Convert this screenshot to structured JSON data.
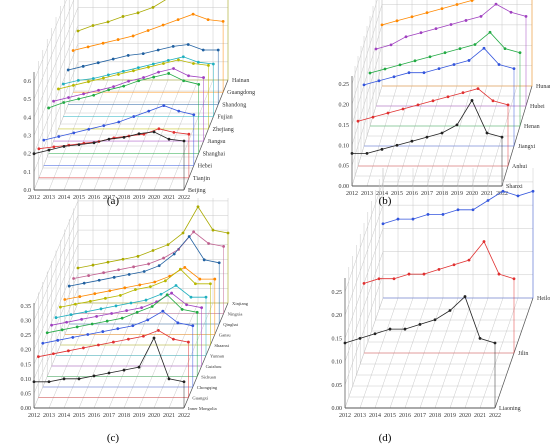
{
  "chart_data": [
    {
      "type": "line",
      "panel_label": "(a)",
      "x": [
        2012,
        2013,
        2014,
        2015,
        2016,
        2017,
        2018,
        2019,
        2020,
        2021,
        2022
      ],
      "z_ticks": [
        "0.0",
        "0.1",
        "0.2",
        "0.3",
        "0.4",
        "0.5",
        "0.6"
      ],
      "zlim": [
        0,
        0.65
      ],
      "series": [
        {
          "name": "Beijing",
          "color": "#222222",
          "values": [
            0.2,
            0.22,
            0.24,
            0.25,
            0.26,
            0.28,
            0.29,
            0.31,
            0.32,
            0.28,
            0.27
          ]
        },
        {
          "name": "Tianjin",
          "color": "#e03030",
          "values": [
            0.16,
            0.17,
            0.18,
            0.19,
            0.2,
            0.22,
            0.23,
            0.24,
            0.27,
            0.25,
            0.24
          ]
        },
        {
          "name": "Hebei",
          "color": "#3355dd",
          "values": [
            0.14,
            0.16,
            0.18,
            0.2,
            0.22,
            0.24,
            0.27,
            0.3,
            0.33,
            0.3,
            0.28
          ]
        },
        {
          "name": "Shanghai",
          "color": "#22aa44",
          "values": [
            0.25,
            0.28,
            0.3,
            0.32,
            0.35,
            0.37,
            0.4,
            0.42,
            0.44,
            0.4,
            0.38
          ]
        },
        {
          "name": "Jiangsu",
          "color": "#a040c0",
          "values": [
            0.22,
            0.24,
            0.26,
            0.28,
            0.3,
            0.33,
            0.35,
            0.38,
            0.4,
            0.36,
            0.35
          ]
        },
        {
          "name": "Zhejiang",
          "color": "#b8b800",
          "values": [
            0.22,
            0.24,
            0.26,
            0.28,
            0.3,
            0.32,
            0.34,
            0.36,
            0.38,
            0.36,
            0.35
          ]
        },
        {
          "name": "Fujian",
          "color": "#20b0c0",
          "values": [
            0.18,
            0.2,
            0.21,
            0.23,
            0.25,
            0.27,
            0.29,
            0.31,
            0.33,
            0.3,
            0.29
          ]
        },
        {
          "name": "Shandong",
          "color": "#2060a0",
          "values": [
            0.19,
            0.21,
            0.23,
            0.25,
            0.27,
            0.28,
            0.3,
            0.32,
            0.33,
            0.3,
            0.3
          ]
        },
        {
          "name": "Guangdong",
          "color": "#ff8800",
          "values": [
            0.23,
            0.25,
            0.27,
            0.29,
            0.31,
            0.34,
            0.37,
            0.4,
            0.43,
            0.4,
            0.39
          ]
        },
        {
          "name": "Hainan",
          "color": "#aaaa00",
          "values": [
            0.27,
            0.3,
            0.32,
            0.35,
            0.37,
            0.4,
            0.45,
            0.5,
            0.58,
            0.55,
            0.56
          ]
        }
      ]
    },
    {
      "type": "line",
      "panel_label": "(b)",
      "x": [
        2012,
        2013,
        2014,
        2015,
        2016,
        2017,
        2018,
        2019,
        2020,
        2021,
        2022
      ],
      "z_ticks": [
        "0.00",
        "0.05",
        "0.10",
        "0.15",
        "0.20",
        "0.25"
      ],
      "zlim": [
        0,
        0.27
      ],
      "series": [
        {
          "name": "Shanxi",
          "color": "#222222",
          "values": [
            0.08,
            0.08,
            0.09,
            0.1,
            0.11,
            0.12,
            0.13,
            0.15,
            0.21,
            0.13,
            0.12
          ]
        },
        {
          "name": "Anhui",
          "color": "#e03030",
          "values": [
            0.11,
            0.12,
            0.13,
            0.14,
            0.15,
            0.16,
            0.17,
            0.18,
            0.19,
            0.16,
            0.15
          ]
        },
        {
          "name": "Jiangxi",
          "color": "#3355dd",
          "values": [
            0.15,
            0.16,
            0.17,
            0.18,
            0.18,
            0.19,
            0.2,
            0.21,
            0.24,
            0.2,
            0.19
          ]
        },
        {
          "name": "Henan",
          "color": "#22aa44",
          "values": [
            0.13,
            0.14,
            0.15,
            0.16,
            0.17,
            0.18,
            0.19,
            0.2,
            0.23,
            0.19,
            0.18
          ]
        },
        {
          "name": "Hubei",
          "color": "#a040c0",
          "values": [
            0.14,
            0.15,
            0.17,
            0.18,
            0.19,
            0.2,
            0.21,
            0.22,
            0.25,
            0.23,
            0.22
          ]
        },
        {
          "name": "Hunan",
          "color": "#ff8800",
          "values": [
            0.15,
            0.16,
            0.17,
            0.18,
            0.19,
            0.2,
            0.21,
            0.22,
            0.25,
            0.24,
            0.24
          ]
        }
      ]
    },
    {
      "type": "line",
      "panel_label": "(c)",
      "x": [
        2012,
        2013,
        2014,
        2015,
        2016,
        2017,
        2018,
        2019,
        2020,
        2021,
        2022
      ],
      "z_ticks": [
        "0.00",
        "0.05",
        "0.10",
        "0.15",
        "0.20",
        "0.25",
        "0.30",
        "0.35"
      ],
      "zlim": [
        0,
        0.36
      ],
      "series": [
        {
          "name": "Inner Mongolia",
          "color": "#222222",
          "values": [
            0.09,
            0.09,
            0.1,
            0.1,
            0.11,
            0.12,
            0.13,
            0.14,
            0.24,
            0.1,
            0.09
          ]
        },
        {
          "name": "Guangxi",
          "color": "#e03030",
          "values": [
            0.14,
            0.15,
            0.16,
            0.17,
            0.18,
            0.19,
            0.2,
            0.21,
            0.23,
            0.2,
            0.19
          ]
        },
        {
          "name": "Chongqing",
          "color": "#3355dd",
          "values": [
            0.15,
            0.16,
            0.17,
            0.18,
            0.19,
            0.2,
            0.21,
            0.23,
            0.26,
            0.22,
            0.21
          ]
        },
        {
          "name": "Sichuan",
          "color": "#22aa44",
          "values": [
            0.15,
            0.16,
            0.17,
            0.18,
            0.19,
            0.2,
            0.22,
            0.24,
            0.28,
            0.23,
            0.22
          ]
        },
        {
          "name": "Guizhou",
          "color": "#a040c0",
          "values": [
            0.14,
            0.15,
            0.16,
            0.17,
            0.18,
            0.19,
            0.2,
            0.22,
            0.25,
            0.21,
            0.2
          ]
        },
        {
          "name": "Yunnan",
          "color": "#20b0c0",
          "values": [
            0.13,
            0.14,
            0.15,
            0.16,
            0.17,
            0.18,
            0.19,
            0.21,
            0.24,
            0.2,
            0.2
          ]
        },
        {
          "name": "Shaanxi",
          "color": "#b8b800",
          "values": [
            0.13,
            0.14,
            0.15,
            0.16,
            0.17,
            0.19,
            0.2,
            0.22,
            0.26,
            0.21,
            0.21
          ]
        },
        {
          "name": "Gansu",
          "color": "#ff8800",
          "values": [
            0.12,
            0.13,
            0.14,
            0.15,
            0.16,
            0.17,
            0.18,
            0.2,
            0.23,
            0.19,
            0.19
          ]
        },
        {
          "name": "Qinghai",
          "color": "#2060a0",
          "values": [
            0.13,
            0.14,
            0.15,
            0.16,
            0.17,
            0.18,
            0.2,
            0.24,
            0.3,
            0.22,
            0.21
          ]
        },
        {
          "name": "Ningxia",
          "color": "#c06090",
          "values": [
            0.12,
            0.13,
            0.14,
            0.15,
            0.16,
            0.17,
            0.19,
            0.22,
            0.28,
            0.24,
            0.23
          ]
        },
        {
          "name": "Xinjiang",
          "color": "#aaaa00",
          "values": [
            0.12,
            0.13,
            0.14,
            0.15,
            0.16,
            0.18,
            0.2,
            0.24,
            0.33,
            0.25,
            0.24
          ]
        }
      ]
    },
    {
      "type": "line",
      "panel_label": "(d)",
      "x": [
        2012,
        2013,
        2014,
        2015,
        2016,
        2017,
        2018,
        2019,
        2020,
        2021,
        2022
      ],
      "z_ticks": [
        "0.00",
        "0.05",
        "0.10",
        "0.15",
        "0.20",
        "0.25"
      ],
      "zlim": [
        0,
        0.28
      ],
      "series": [
        {
          "name": "Liaoning",
          "color": "#222222",
          "values": [
            0.14,
            0.15,
            0.16,
            0.17,
            0.17,
            0.18,
            0.19,
            0.21,
            0.24,
            0.15,
            0.14
          ]
        },
        {
          "name": "Jilin",
          "color": "#e03030",
          "values": [
            0.15,
            0.16,
            0.16,
            0.17,
            0.17,
            0.18,
            0.19,
            0.2,
            0.24,
            0.17,
            0.16
          ]
        },
        {
          "name": "Heilongjiang",
          "color": "#3355dd",
          "values": [
            0.16,
            0.17,
            0.17,
            0.18,
            0.18,
            0.19,
            0.19,
            0.21,
            0.23,
            0.22,
            0.23
          ]
        }
      ]
    }
  ]
}
